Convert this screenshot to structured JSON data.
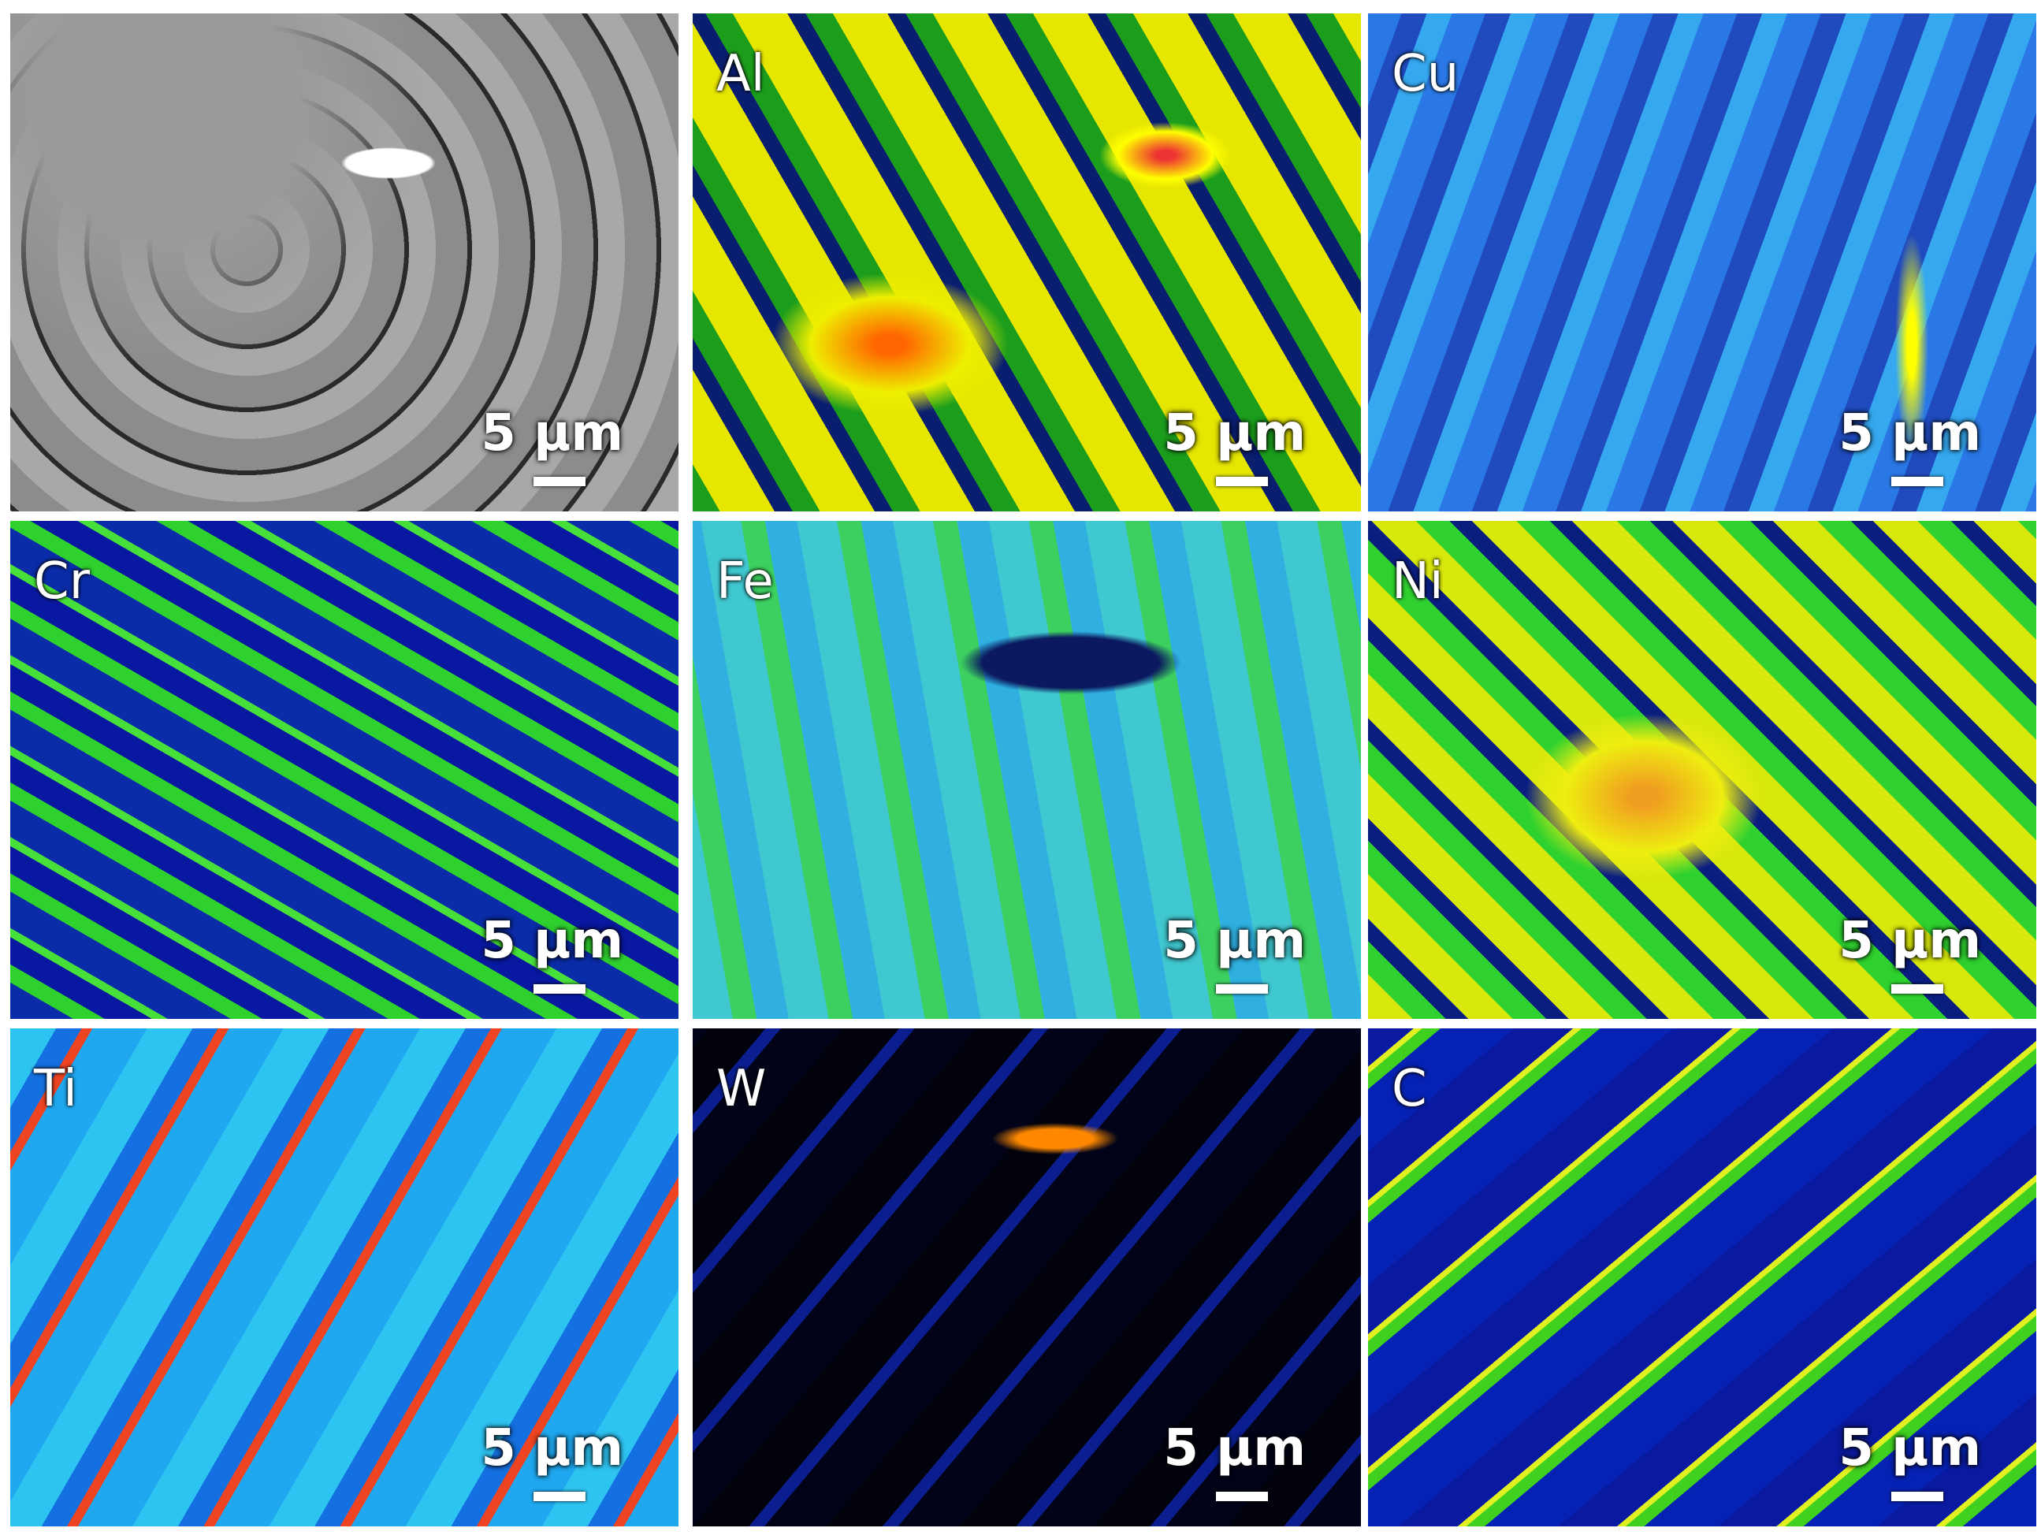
{
  "panels": [
    {
      "scale": "5 µm"
    },
    {
      "label": "Al",
      "scale": "5 µm"
    },
    {
      "label": "Cu",
      "scale": "5 µm"
    },
    {
      "label": "Cr",
      "scale": "5 µm"
    },
    {
      "label": "Fe",
      "scale": "5 µm"
    },
    {
      "label": "Ni",
      "scale": "5 µm"
    },
    {
      "label": "Ti",
      "scale": "5 µm"
    },
    {
      "label": "W",
      "scale": "5 µm"
    },
    {
      "label": "C",
      "scale": "5 µm"
    }
  ]
}
